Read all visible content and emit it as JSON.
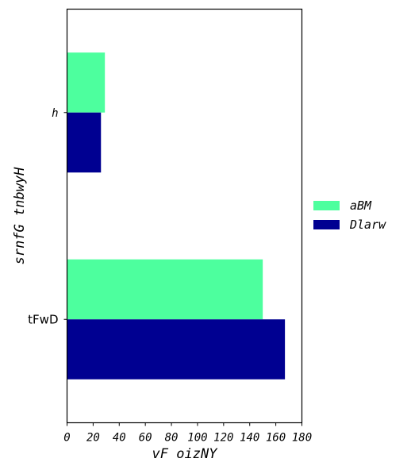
{
  "chart_data": {
    "type": "bar",
    "orientation": "horizontal",
    "categories": [
      "h",
      "tFwD"
    ],
    "series": [
      {
        "name": "aBM",
        "values": [
          29,
          150
        ],
        "color": "#4dff9e"
      },
      {
        "name": "Dlarw",
        "values": [
          26,
          167
        ],
        "color": "#000091"
      }
    ],
    "xlabel": "vF oizNY",
    "ylabel": "srnfG tnbwyH",
    "xlim": [
      0,
      180
    ],
    "xticks": [
      0,
      20,
      40,
      60,
      80,
      100,
      120,
      140,
      160,
      180
    ],
    "grid": false,
    "legend_position": "right"
  }
}
